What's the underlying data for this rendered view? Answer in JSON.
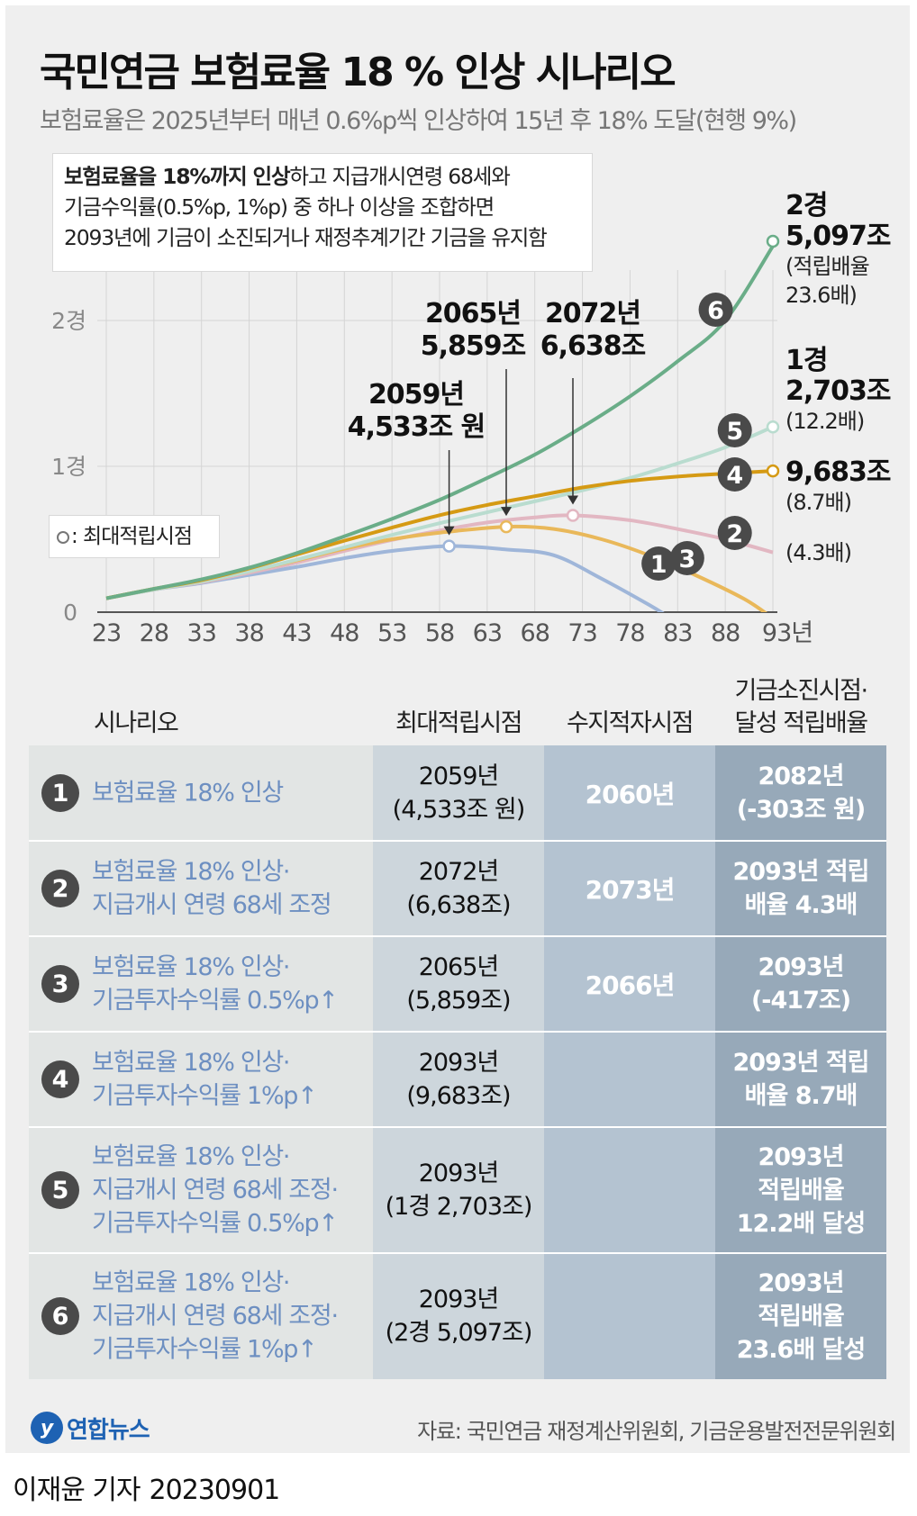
{
  "header": {
    "title": "국민연금 보험료율 18 % 인상 시나리오",
    "subtitle": "보험료율은 2025년부터 매년 0.6%p씩 인상하여 15년 후 18% 도달(현행 9%)"
  },
  "note": {
    "bold": "보험료율을 18%까지 인상",
    "line1_rest": "하고 지급개시연령 68세와",
    "line2": "기금수익률(0.5%p, 1%p) 중 하나 이상을 조합하면",
    "line3": "2093년에 기금이 소진되거나 재정추계기간 기금을 유지함"
  },
  "legend": {
    "text": ": 최대적립시점"
  },
  "colors": {
    "s1": "#9fb6d9",
    "s2": "#e2b7c2",
    "s3": "#e9b85a",
    "s4": "#d59a14",
    "s5": "#b9dccf",
    "s6": "#6aad88",
    "badge": "#4a4a4a"
  },
  "chart_data": {
    "type": "line",
    "title": "국민연금 보험료율 18 % 인상 시나리오",
    "xlabel": "",
    "ylabel": "",
    "x_unit": "년",
    "y_unit": "조 원",
    "xlim": [
      2023,
      2093
    ],
    "ylim": [
      0,
      20000
    ],
    "x_ticks": [
      23,
      28,
      33,
      38,
      43,
      48,
      53,
      58,
      63,
      68,
      73,
      78,
      83,
      88,
      93
    ],
    "x_tick_labels": [
      "23",
      "28",
      "33",
      "38",
      "43",
      "48",
      "53",
      "58",
      "63",
      "68",
      "73",
      "78",
      "83",
      "88",
      "93년"
    ],
    "y_ticks": [
      0,
      10000,
      20000
    ],
    "y_tick_labels": [
      "0",
      "1경",
      "2경"
    ],
    "series": [
      {
        "id": 1,
        "name": "보험료율 18% 인상",
        "x": [
          2023,
          2028,
          2033,
          2038,
          2043,
          2048,
          2053,
          2059,
          2065,
          2070,
          2075,
          2080,
          2082
        ],
        "values": [
          950,
          1550,
          2000,
          2550,
          3100,
          3700,
          4200,
          4533,
          4300,
          3900,
          2300,
          500,
          -303
        ],
        "peak": {
          "x": 2059,
          "y": 4533
        }
      },
      {
        "id": 2,
        "name": "보험료율 18% 인상·지급개시 연령 68세 조정",
        "x": [
          2023,
          2028,
          2033,
          2038,
          2043,
          2048,
          2053,
          2058,
          2063,
          2068,
          2072,
          2078,
          2083,
          2088,
          2093
        ],
        "values": [
          950,
          1550,
          2050,
          2700,
          3400,
          4200,
          4950,
          5600,
          6150,
          6500,
          6638,
          6300,
          5700,
          5000,
          4100
        ],
        "peak": {
          "x": 2072,
          "y": 6638
        }
      },
      {
        "id": 3,
        "name": "보험료율 18% 인상·기금투자수익률 0.5%p↑",
        "x": [
          2023,
          2028,
          2033,
          2038,
          2043,
          2048,
          2053,
          2058,
          2065,
          2070,
          2075,
          2080,
          2085,
          2090,
          2093
        ],
        "values": [
          950,
          1580,
          2100,
          2800,
          3550,
          4350,
          5000,
          5450,
          5859,
          5700,
          5000,
          3900,
          2500,
          900,
          -417
        ],
        "peak": {
          "x": 2065,
          "y": 5859
        }
      },
      {
        "id": 4,
        "name": "보험료율 18% 인상·기금투자수익률 1%p↑",
        "x": [
          2023,
          2028,
          2033,
          2038,
          2043,
          2048,
          2053,
          2058,
          2063,
          2068,
          2073,
          2078,
          2083,
          2088,
          2093
        ],
        "values": [
          950,
          1600,
          2200,
          3000,
          3950,
          4900,
          5800,
          6650,
          7350,
          7950,
          8550,
          9000,
          9300,
          9500,
          9683
        ],
        "peak": {
          "x": 2093,
          "y": 9683
        }
      },
      {
        "id": 5,
        "name": "보험료율 18% 인상·지급개시 연령 68세 조정·기금투자수익률 0.5%p↑",
        "x": [
          2023,
          2028,
          2033,
          2038,
          2043,
          2048,
          2053,
          2058,
          2063,
          2068,
          2073,
          2078,
          2083,
          2088,
          2093
        ],
        "values": [
          950,
          1550,
          2100,
          2800,
          3600,
          4450,
          5300,
          6100,
          6850,
          7600,
          8350,
          9200,
          10200,
          11300,
          12703
        ],
        "peak": {
          "x": 2093,
          "y": 12703
        }
      },
      {
        "id": 6,
        "name": "보험료율 18% 인상·지급개시 연령 68세 조정·기금투자수익률 1%p↑",
        "x": [
          2023,
          2028,
          2033,
          2038,
          2043,
          2048,
          2053,
          2058,
          2063,
          2068,
          2073,
          2078,
          2083,
          2088,
          2093
        ],
        "values": [
          950,
          1600,
          2250,
          3050,
          4050,
          5200,
          6400,
          7700,
          9200,
          10800,
          12700,
          14800,
          17200,
          20000,
          25097
        ],
        "peak": {
          "x": 2093,
          "y": 25097
        }
      }
    ],
    "annotations": [
      {
        "line1": "2059년",
        "line2": "4,533조 원",
        "x": 2059,
        "y": 4533
      },
      {
        "line1": "2065년",
        "line2": "5,859조",
        "x": 2065,
        "y": 5859
      },
      {
        "line1": "2072년",
        "line2": "6,638조",
        "x": 2072,
        "y": 6638
      }
    ],
    "end_labels": [
      {
        "series": 6,
        "line1": "2경",
        "line2": "5,097조",
        "line3": "(적립배율",
        "line4": "23.6배)"
      },
      {
        "series": 5,
        "line1": "1경",
        "line2": "2,703조",
        "line3": "(12.2배)"
      },
      {
        "series": 4,
        "line1": "9,683조",
        "line2": "(8.7배)"
      },
      {
        "series": 2,
        "line1": "(4.3배)"
      }
    ]
  },
  "table": {
    "headers": {
      "scenario": "시나리오",
      "max": "최대적립시점",
      "deficit": "수지적자시점",
      "end_line1": "기금소진시점·",
      "end_line2": "달성 적립배율"
    },
    "rows": [
      {
        "num": "1",
        "name": "보험료율 18% 인상",
        "max": "2059년\n(4,533조 원)",
        "deficit": "2060년",
        "end": "2082년\n(-303조 원)"
      },
      {
        "num": "2",
        "name": "보험료율 18% 인상·\n지급개시 연령 68세 조정",
        "max": "2072년\n(6,638조)",
        "deficit": "2073년",
        "end": "2093년 적립\n배율 4.3배"
      },
      {
        "num": "3",
        "name": "보험료율 18% 인상·\n기금투자수익률 0.5%p↑",
        "max": "2065년\n(5,859조)",
        "deficit": "2066년",
        "end": "2093년\n(-417조)"
      },
      {
        "num": "4",
        "name": "보험료율 18% 인상·\n기금투자수익률 1%p↑",
        "max": "2093년\n(9,683조)",
        "deficit": "",
        "end": "2093년 적립\n배율 8.7배"
      },
      {
        "num": "5",
        "name": "보험료율 18% 인상·\n지급개시 연령 68세 조정·\n기금투자수익률 0.5%p↑",
        "max": "2093년\n(1경 2,703조)",
        "deficit": "",
        "end": "2093년\n적립배율\n12.2배 달성"
      },
      {
        "num": "6",
        "name": "보험료율 18% 인상·\n지급개시 연령 68세 조정·\n기금투자수익률 1%p↑",
        "max": "2093년\n(2경 5,097조)",
        "deficit": "",
        "end": "2093년\n적립배율\n23.6배 달성"
      }
    ]
  },
  "footer": {
    "logo_text": "연합뉴스",
    "source": "자료: 국민연금 재정계산위원회, 기금운용발전전문위원회",
    "reporter": "이재윤 기자",
    "date": "20230901"
  }
}
